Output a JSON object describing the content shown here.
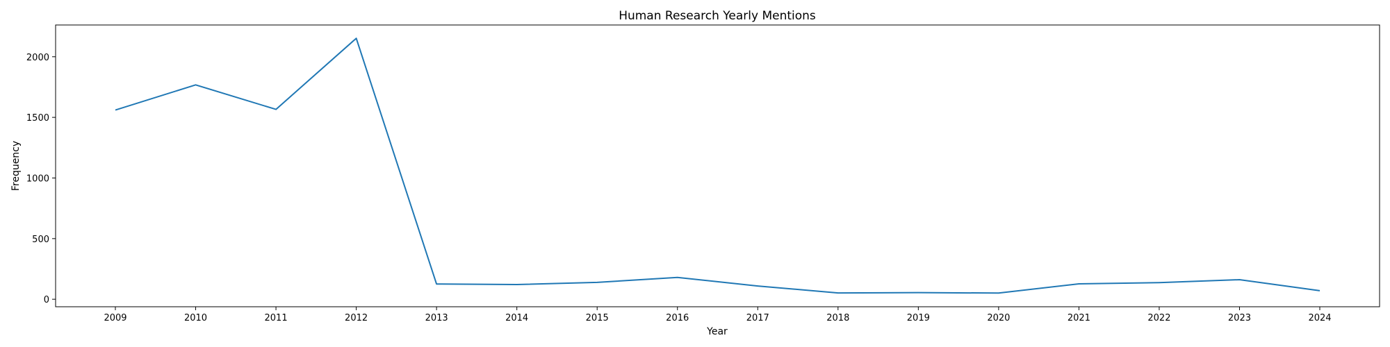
{
  "chart_data": {
    "type": "line",
    "title": "Human Research Yearly Mentions",
    "xlabel": "Year",
    "ylabel": "Frequency",
    "x": [
      "2009",
      "2010",
      "2011",
      "2012",
      "2013",
      "2014",
      "2015",
      "2016",
      "2017",
      "2018",
      "2019",
      "2020",
      "2021",
      "2022",
      "2023",
      "2024"
    ],
    "series": [
      {
        "values": [
          1560,
          1768,
          1566,
          2152,
          126,
          121,
          139,
          180,
          109,
          52,
          55,
          51,
          127,
          137,
          161,
          70
        ],
        "color": "#1f77b4"
      }
    ],
    "yticks": [
      0,
      500,
      1000,
      1500,
      2000
    ],
    "ylim": [
      -62,
      2262
    ],
    "grid": false,
    "legend": "none"
  }
}
